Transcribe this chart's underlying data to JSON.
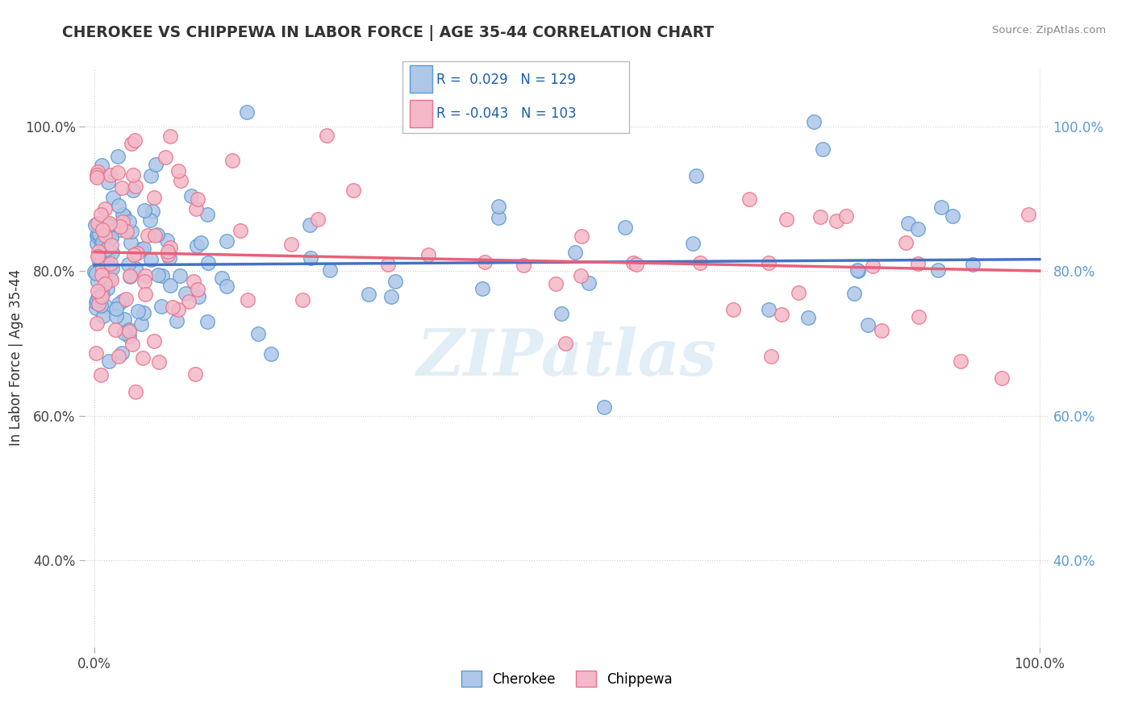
{
  "title": "CHEROKEE VS CHIPPEWA IN LABOR FORCE | AGE 35-44 CORRELATION CHART",
  "source": "Source: ZipAtlas.com",
  "ylabel": "In Labor Force | Age 35-44",
  "xlim": [
    -0.01,
    1.01
  ],
  "ylim": [
    0.28,
    1.08
  ],
  "x_ticks": [
    0.0,
    1.0
  ],
  "x_tick_labels": [
    "0.0%",
    "100.0%"
  ],
  "y_ticks": [
    0.4,
    0.6,
    0.8,
    1.0
  ],
  "y_tick_labels": [
    "40.0%",
    "60.0%",
    "80.0%",
    "100.0%"
  ],
  "cherokee_color": "#aec6e8",
  "chippewa_color": "#f4b8c8",
  "cherokee_edge": "#5b9bd5",
  "chippewa_edge": "#e8748a",
  "R_cherokee": 0.029,
  "N_cherokee": 129,
  "R_chippewa": -0.043,
  "N_chippewa": 103,
  "trend_cherokee_color": "#4472c4",
  "trend_chippewa_color": "#e8607a",
  "watermark": "ZIPatlas",
  "seed_cherokee": 42,
  "seed_chippewa": 17,
  "trend_ck_y0": 0.808,
  "trend_ck_y1": 0.816,
  "trend_cp_y0": 0.826,
  "trend_cp_y1": 0.8
}
